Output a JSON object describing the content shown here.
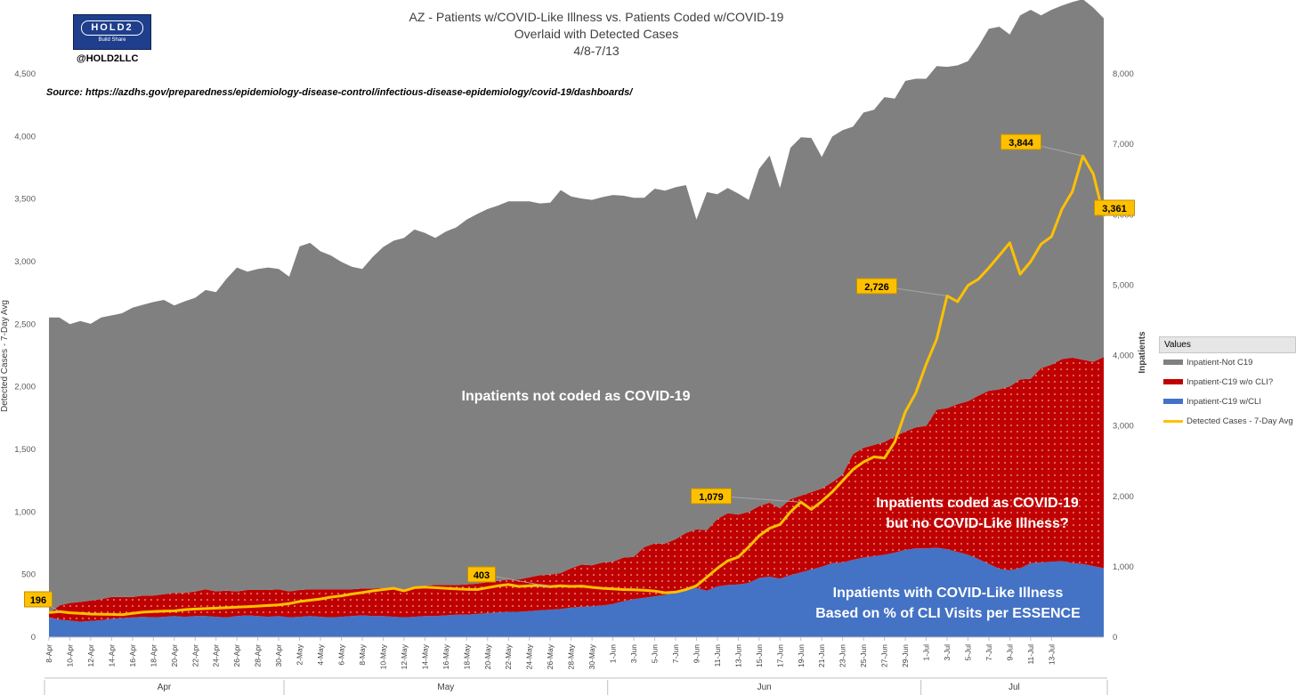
{
  "header": {
    "logo_text": "HOLD2",
    "logo_tagline": "Build Share",
    "handle": "@HOLD2LLC",
    "title_lines": [
      "AZ - Patients w/COVID-Like Illness vs. Patients Coded w/COVID-19",
      "Overlaid with Detected Cases",
      "4/8-7/13"
    ],
    "source": "Source: https://azdhs.gov/preparedness/epidemiology-disease-control/infectious-disease-epidemiology/covid-19/dashboards/"
  },
  "legend": {
    "title": "Values",
    "items": [
      {
        "label": "Inpatient-Not C19",
        "color": "#808080",
        "kind": "area"
      },
      {
        "label": "Inpatient-C19 w/o CLI?",
        "color": "#c00000",
        "kind": "area"
      },
      {
        "label": "Inpatient-C19 w/CLI",
        "color": "#4472c4",
        "kind": "area"
      },
      {
        "label": "Detected Cases - 7-Day Avg",
        "color": "#ffc000",
        "kind": "line"
      }
    ]
  },
  "chart_data": {
    "type": "area",
    "title": "AZ - Patients w/COVID-Like Illness vs. Patients Coded w/COVID-19",
    "subtitle": "Overlaid with Detected Cases 4/8-7/13",
    "ylabel": "Detected Cases - 7-Day Avg",
    "y2label": "Inpatients",
    "ylim": [
      0,
      4500
    ],
    "y2lim": [
      0,
      8000
    ],
    "y_ticks": [
      "0",
      "500",
      "1,000",
      "1,500",
      "2,000",
      "2,500",
      "3,000",
      "3,500",
      "4,000",
      "4,500"
    ],
    "y2_ticks": [
      "0",
      "1,000",
      "2,000",
      "3,000",
      "4,000",
      "5,000",
      "6,000",
      "7,000",
      "8,000"
    ],
    "x_tick_labels": [
      "8-Apr",
      "10-Apr",
      "12-Apr",
      "14-Apr",
      "16-Apr",
      "18-Apr",
      "20-Apr",
      "22-Apr",
      "24-Apr",
      "26-Apr",
      "28-Apr",
      "30-Apr",
      "2-May",
      "4-May",
      "6-May",
      "8-May",
      "10-May",
      "12-May",
      "14-May",
      "16-May",
      "18-May",
      "20-May",
      "22-May",
      "24-May",
      "26-May",
      "28-May",
      "30-May",
      "1-Jun",
      "3-Jun",
      "5-Jun",
      "7-Jun",
      "9-Jun",
      "11-Jun",
      "13-Jun",
      "15-Jun",
      "17-Jun",
      "19-Jun",
      "21-Jun",
      "23-Jun",
      "25-Jun",
      "27-Jun",
      "29-Jun",
      "1-Jul",
      "3-Jul",
      "5-Jul",
      "7-Jul",
      "9-Jul",
      "11-Jul",
      "13-Jul"
    ],
    "month_groups": [
      {
        "label": "Apr",
        "start": "8-Apr",
        "end": "30-Apr"
      },
      {
        "label": "May",
        "start": "1-May",
        "end": "31-May"
      },
      {
        "label": "Jun",
        "start": "1-Jun",
        "end": "30-Jun"
      },
      {
        "label": "Jul",
        "start": "1-Jul",
        "end": "13-Jul"
      }
    ],
    "x_start": "2020-04-08",
    "stacked_axis": "y2",
    "series": [
      {
        "name": "Inpatient-C19 w/CLI",
        "color": "#4472c4",
        "axis": "y2",
        "kind": "area",
        "values": [
          280,
          250,
          235,
          220,
          230,
          240,
          260,
          270,
          280,
          290,
          280,
          290,
          300,
          290,
          300,
          300,
          290,
          280,
          300,
          310,
          300,
          290,
          300,
          280,
          290,
          300,
          290,
          280,
          290,
          300,
          310,
          300,
          300,
          290,
          280,
          290,
          300,
          300,
          310,
          320,
          320,
          330,
          340,
          350,
          360,
          360,
          370,
          380,
          390,
          400,
          420,
          430,
          440,
          450,
          470,
          510,
          540,
          560,
          580,
          600,
          630,
          680,
          700,
          660,
          720,
          740,
          750,
          770,
          840,
          860,
          830,
          880,
          920,
          960,
          1000,
          1050,
          1060,
          1100,
          1130,
          1150,
          1170,
          1200,
          1240,
          1260,
          1260,
          1270,
          1250,
          1210,
          1170,
          1110,
          1040,
          970,
          950,
          980,
          1050,
          1060,
          1070,
          1080,
          1050,
          1040,
          1010,
          980
        ]
      },
      {
        "name": "Inpatient-C19 w/o CLI?",
        "color": "#c00000",
        "axis": "y2",
        "kind": "area",
        "values": [
          60,
          200,
          250,
          280,
          290,
          300,
          310,
          300,
          290,
          300,
          310,
          320,
          330,
          340,
          350,
          380,
          360,
          380,
          350,
          360,
          370,
          380,
          380,
          370,
          380,
          380,
          390,
          400,
          390,
          380,
          380,
          390,
          400,
          410,
          400,
          420,
          430,
          440,
          430,
          420,
          430,
          430,
          440,
          450,
          460,
          460,
          480,
          500,
          500,
          510,
          560,
          600,
          580,
          610,
          600,
          620,
          600,
          720,
          750,
          730,
          760,
          800,
          830,
          860,
          960,
          1020,
          990,
          1010,
          1020,
          1050,
          1000,
          1080,
          1090,
          1100,
          1110,
          1150,
          1250,
          1500,
          1560,
          1580,
          1600,
          1650,
          1680,
          1720,
          1740,
          1960,
          2000,
          2100,
          2180,
          2320,
          2460,
          2550,
          2610,
          2680,
          2620,
          2760,
          2800,
          2870,
          2920,
          2900,
          2900,
          3000
        ]
      },
      {
        "name": "Inpatient-Not C19",
        "color": "#808080",
        "axis": "y2",
        "kind": "area",
        "values": [
          4200,
          4090,
          3960,
          3990,
          3930,
          4000,
          4000,
          4030,
          4110,
          4130,
          4170,
          4180,
          4080,
          4140,
          4170,
          4250,
          4250,
          4430,
          4600,
          4520,
          4560,
          4580,
          4550,
          4470,
          4880,
          4920,
          4800,
          4740,
          4650,
          4580,
          4540,
          4710,
          4840,
          4930,
          4990,
          5080,
          5010,
          4930,
          5020,
          5080,
          5180,
          5250,
          5300,
          5330,
          5370,
          5370,
          5340,
          5280,
          5280,
          5440,
          5280,
          5200,
          5190,
          5190,
          5210,
          5140,
          5100,
          4960,
          5040,
          5010,
          5000,
          4940,
          4400,
          4800,
          4610,
          4620,
          4560,
          4430,
          4790,
          4930,
          4550,
          4990,
          5090,
          5030,
          4710,
          4910,
          4890,
          4650,
          4760,
          4760,
          4900,
          4800,
          4980,
          4950,
          4930,
          4880,
          4850,
          4810,
          4830,
          4960,
          5140,
          5150,
          5000,
          5170,
          5240,
          5010,
          5040,
          5020,
          5050,
          5120,
          5030,
          4810
        ]
      },
      {
        "name": "Detected Cases - 7-Day Avg",
        "color": "#ffc000",
        "axis": "y",
        "kind": "line",
        "values": [
          196,
          205,
          195,
          190,
          185,
          183,
          182,
          180,
          190,
          200,
          205,
          208,
          210,
          220,
          225,
          228,
          232,
          235,
          240,
          243,
          248,
          253,
          258,
          268,
          285,
          295,
          305,
          320,
          330,
          345,
          356,
          370,
          380,
          390,
          370,
          395,
          400,
          395,
          390,
          385,
          382,
          380,
          395,
          410,
          420,
          405,
          410,
          413,
          403,
          410,
          405,
          408,
          398,
          390,
          385,
          380,
          378,
          375,
          368,
          355,
          360,
          380,
          410,
          480,
          550,
          610,
          640,
          720,
          810,
          870,
          900,
          1000,
          1079,
          1020,
          1085,
          1160,
          1250,
          1340,
          1400,
          1440,
          1430,
          1560,
          1800,
          1950,
          2180,
          2380,
          2726,
          2680,
          2810,
          2860,
          2950,
          3050,
          3150,
          2900,
          3000,
          3140,
          3200,
          3420,
          3560,
          3844,
          3700,
          3361
        ]
      }
    ],
    "annotations": [
      {
        "label": "196",
        "series": "Detected Cases - 7-Day Avg"
      },
      {
        "label": "403",
        "series": "Detected Cases - 7-Day Avg"
      },
      {
        "label": "1,079",
        "series": "Detected Cases - 7-Day Avg"
      },
      {
        "label": "2,726",
        "series": "Detected Cases - 7-Day Avg"
      },
      {
        "label": "3,844",
        "series": "Detected Cases - 7-Day Avg"
      },
      {
        "label": "3,361",
        "series": "Detected Cases - 7-Day Avg"
      }
    ],
    "region_labels": [
      {
        "text": [
          "Inpatients not coded as COVID-19"
        ]
      },
      {
        "text": [
          "Inpatients coded as COVID-19",
          "but no COVID-Like Illness?"
        ]
      },
      {
        "text": [
          "Inpatients with COVID-Like Illness",
          "Based on % of CLI Visits per ESSENCE"
        ]
      }
    ],
    "grid": false,
    "legend_position": "right"
  }
}
